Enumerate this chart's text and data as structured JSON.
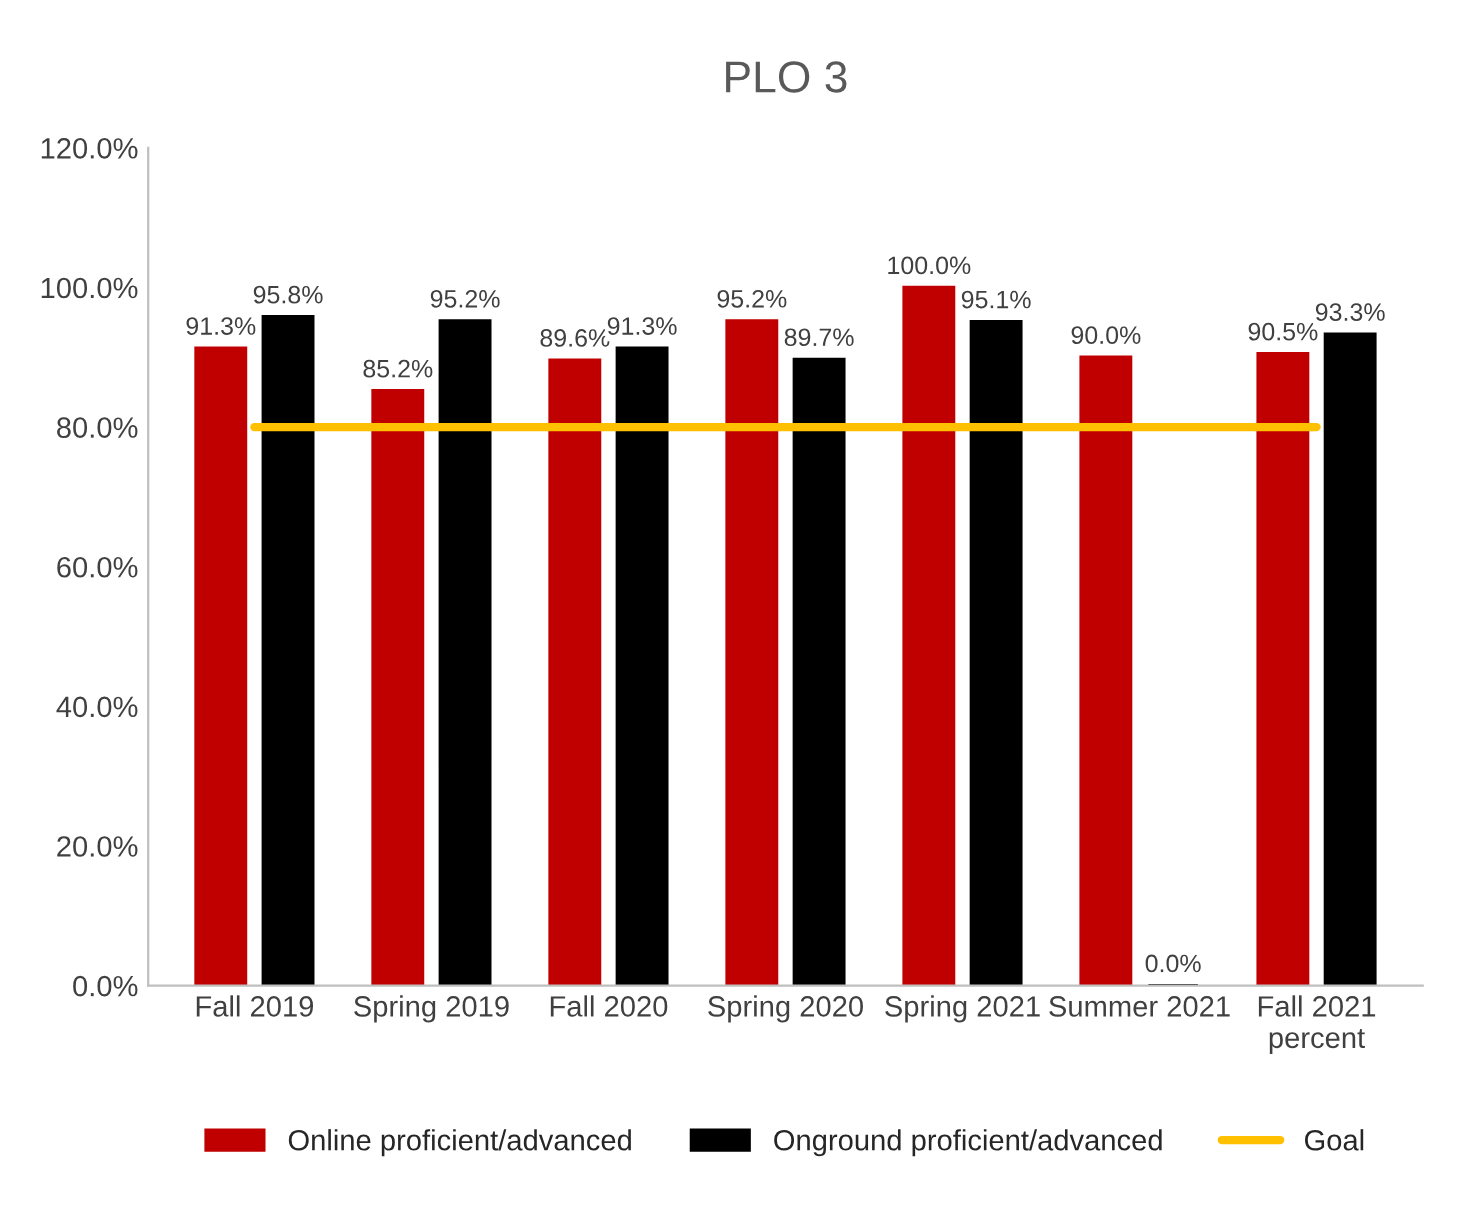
{
  "chart_data": {
    "type": "bar",
    "title": "PLO 3",
    "categories": [
      "Fall 2019",
      "Spring 2019",
      "Fall 2020",
      "Spring 2020",
      "Spring 2021",
      "Summer 2021",
      "Fall 2021\npercent"
    ],
    "series": [
      {
        "name": "Online proficient/advanced",
        "color": "#c00000",
        "values": [
          91.3,
          85.2,
          89.6,
          95.2,
          100.0,
          90.0,
          90.5
        ],
        "value_labels": [
          "91.3%",
          "85.2%",
          "89.6%",
          "95.2%",
          "100.0%",
          "90.0%",
          "90.5%"
        ]
      },
      {
        "name": "Onground proficient/advanced",
        "color": "#000000",
        "values": [
          95.8,
          95.2,
          91.3,
          89.7,
          95.1,
          0.0,
          93.3
        ],
        "value_labels": [
          "95.8%",
          "95.2%",
          "91.3%",
          "89.7%",
          "95.1%",
          "0.0%",
          "93.3%"
        ]
      },
      {
        "name": "Goal",
        "type": "line",
        "color": "#ffc000",
        "values": [
          80,
          80,
          80,
          80,
          80,
          80,
          80
        ]
      }
    ],
    "ylim": [
      0,
      120
    ],
    "yticks": [
      {
        "value": 0,
        "label": "0.0%"
      },
      {
        "value": 20,
        "label": "20.0%"
      },
      {
        "value": 40,
        "label": "40.0%"
      },
      {
        "value": 60,
        "label": "60.0%"
      },
      {
        "value": 80,
        "label": "80.0%"
      },
      {
        "value": 100,
        "label": "100.0%"
      },
      {
        "value": 120,
        "label": "120.0%"
      }
    ],
    "grid": false,
    "legend": "bottom",
    "marker": "none"
  }
}
